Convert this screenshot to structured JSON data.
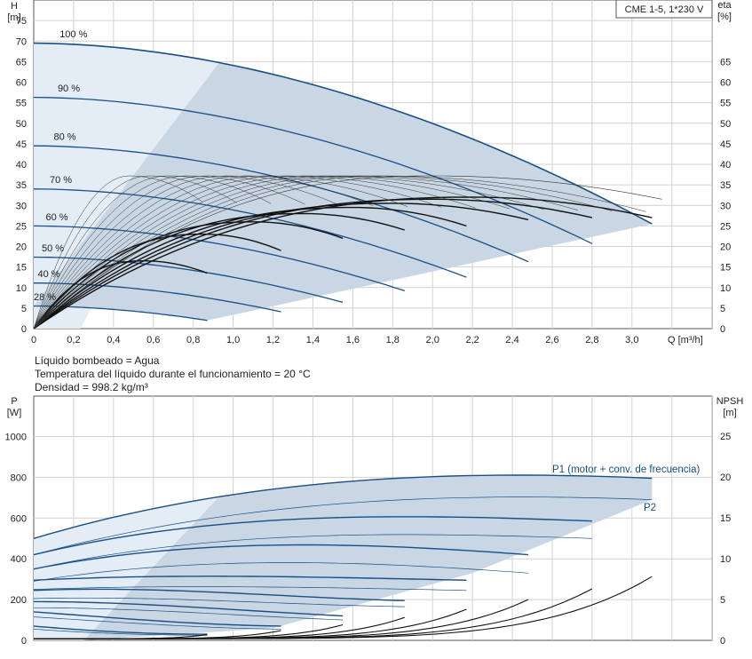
{
  "model_label": "CME 1-5, 1*230 V",
  "fluid_info": {
    "line1": "Líquido bombeado = Agua",
    "line2": "Temperatura del líquido durante el funcionamiento = 20 °C",
    "line3": "Densidad = 998.2 kg/m³"
  },
  "colors": {
    "accent": "#1a4f86",
    "band_dark": "#c9d6e3",
    "band_light": "#e4edf6",
    "grid": "#d2d2d2"
  },
  "chart_data": [
    {
      "type": "line",
      "id": "head",
      "ylabel": "H",
      "yunit": "[m]",
      "y2label": "eta",
      "y2unit": "[%]",
      "xlabel": "Q [m³/h]",
      "xlim": [
        0,
        3.4
      ],
      "ylim": [
        0,
        80
      ],
      "xticks": [
        "0",
        "0,2",
        "0,4",
        "0,6",
        "0,8",
        "1,0",
        "1,2",
        "1,4",
        "1,6",
        "1,8",
        "2,0",
        "2,2",
        "2,4",
        "2,6",
        "2,8",
        "3,0"
      ],
      "yticks": [
        0,
        5,
        10,
        15,
        20,
        25,
        30,
        35,
        40,
        45,
        50,
        55,
        60,
        65,
        70,
        75
      ],
      "y2ticks": [
        0,
        5,
        10,
        15,
        20,
        25,
        30,
        35,
        40,
        45,
        50,
        55,
        60,
        65
      ],
      "grid": true,
      "series": [
        {
          "name": "100 %",
          "qmax": 3.1,
          "h0": 69.5,
          "hend": 25.5,
          "qlabel": 0.13,
          "hlabel": 70.5
        },
        {
          "name": "90 %",
          "qmax": 2.8,
          "h0": 56.3,
          "hend": 20.7,
          "qlabel": 0.12,
          "hlabel": 57.3
        },
        {
          "name": "80 %",
          "qmax": 2.48,
          "h0": 44.5,
          "hend": 16.3,
          "qlabel": 0.1,
          "hlabel": 45.5
        },
        {
          "name": "70 %",
          "qmax": 2.17,
          "h0": 34.0,
          "hend": 12.5,
          "qlabel": 0.08,
          "hlabel": 35.0
        },
        {
          "name": "60 %",
          "qmax": 1.86,
          "h0": 25.0,
          "hend": 9.2,
          "qlabel": 0.06,
          "hlabel": 26.0
        },
        {
          "name": "50 %",
          "qmax": 1.55,
          "h0": 17.4,
          "hend": 6.4,
          "qlabel": 0.04,
          "hlabel": 18.4
        },
        {
          "name": "40 %",
          "qmax": 1.24,
          "h0": 11.1,
          "hend": 4.1,
          "qlabel": 0.02,
          "hlabel": 12.1
        },
        {
          "name": "28 %",
          "qmax": 0.87,
          "h0": 5.5,
          "hend": 2.0,
          "qlabel": 0.0,
          "hlabel": 6.5
        }
      ],
      "eta_curves": [
        {
          "qmax": 3.1,
          "peak_q": 2.2,
          "peak": 32.0,
          "end": 27.0
        },
        {
          "qmax": 2.8,
          "peak_q": 2.0,
          "peak": 31.5,
          "end": 27.0
        },
        {
          "qmax": 2.48,
          "peak_q": 1.8,
          "peak": 30.5,
          "end": 26.5
        },
        {
          "qmax": 2.17,
          "peak_q": 1.6,
          "peak": 29.5,
          "end": 25.0
        },
        {
          "qmax": 1.86,
          "peak_q": 1.35,
          "peak": 28.0,
          "end": 24.0
        },
        {
          "qmax": 1.55,
          "peak_q": 1.1,
          "peak": 26.0,
          "end": 22.0
        },
        {
          "qmax": 1.24,
          "peak_q": 0.85,
          "peak": 23.0,
          "end": 19.0
        },
        {
          "qmax": 0.87,
          "peak_q": 0.55,
          "peak": 16.5,
          "end": 13.5
        }
      ],
      "eta_envelope": {
        "qmax": 3.15,
        "peak_q": 2.0,
        "peak": 37.2,
        "end": 31.5
      }
    },
    {
      "type": "line",
      "id": "power",
      "ylabel": "P",
      "yunit": "[W]",
      "y2label": "NPSH",
      "y2unit": "[m]",
      "xlim": [
        0,
        3.4
      ],
      "ylim": [
        0,
        1100
      ],
      "yticks": [
        0,
        200,
        400,
        600,
        800,
        1000
      ],
      "y2ticks": [
        0,
        5,
        10,
        15,
        20,
        25
      ],
      "grid": true,
      "series": [
        {
          "name": "P1 (motor + conv. de frecuencia)",
          "p1": [
            500,
            800,
            840,
            795
          ],
          "p2": [
            420,
            690,
            730,
            690
          ],
          "qmax": 3.1
        },
        {
          "name": "",
          "p1": [
            420,
            640,
            620,
            585
          ],
          "p2": [
            350,
            550,
            530,
            500
          ],
          "qmax": 2.8
        },
        {
          "name": "",
          "p1": [
            350,
            510,
            480,
            420
          ],
          "p2": [
            290,
            420,
            390,
            330
          ],
          "qmax": 2.48
        },
        {
          "name": "",
          "p1": [
            295,
            330,
            310,
            295
          ],
          "p2": [
            250,
            275,
            260,
            245
          ],
          "qmax": 2.17
        },
        {
          "name": "",
          "p1": [
            245,
            270,
            210,
            195
          ],
          "p2": [
            205,
            220,
            175,
            165
          ],
          "qmax": 1.86
        },
        {
          "name": "",
          "p1": [
            190,
            190,
            145,
            120
          ],
          "p2": [
            160,
            160,
            120,
            100
          ],
          "qmax": 1.55
        },
        {
          "name": "",
          "p1": [
            140,
            110,
            75,
            70
          ],
          "p2": [
            115,
            90,
            60,
            55
          ],
          "qmax": 1.24
        },
        {
          "name": "",
          "p1": [
            70,
            45,
            30,
            30
          ],
          "p2": [
            55,
            35,
            25,
            25
          ],
          "qmax": 0.87
        }
      ],
      "p2_label": "P2",
      "npsh_curves": [
        {
          "qmax": 3.1,
          "end": 7.8
        },
        {
          "qmax": 2.8,
          "end": 6.3
        },
        {
          "qmax": 2.48,
          "end": 5.0
        },
        {
          "qmax": 2.17,
          "end": 3.8
        },
        {
          "qmax": 1.86,
          "end": 2.8
        },
        {
          "qmax": 1.55,
          "end": 1.9
        },
        {
          "qmax": 1.24,
          "end": 1.2
        },
        {
          "qmax": 0.87,
          "end": 0.7
        }
      ]
    }
  ]
}
